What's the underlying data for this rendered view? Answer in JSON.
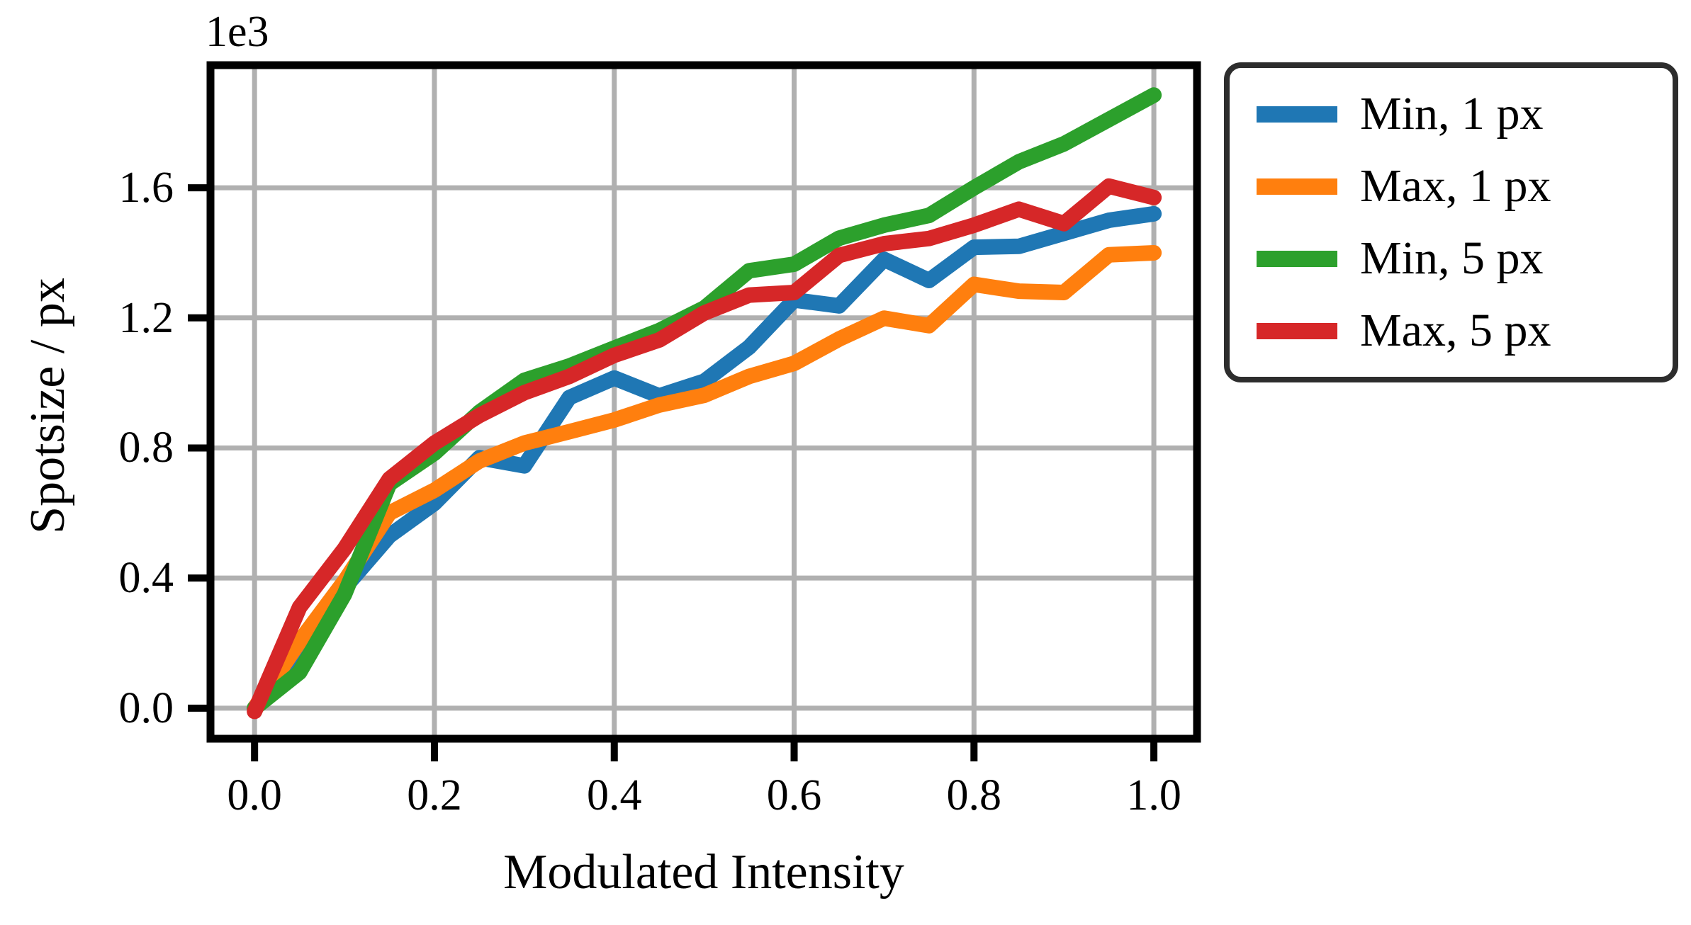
{
  "figure": {
    "y_offset_label": "1e3",
    "xlabel": "Modulated Intensity",
    "ylabel": "Spotsize / px"
  },
  "chart_data": {
    "type": "line",
    "title": "",
    "xlabel": "Modulated Intensity",
    "ylabel": "Spotsize / px",
    "y_offset_label": "1e3",
    "grid": true,
    "legend_position": "outside upper right",
    "background": "#ffffff",
    "grid_color": "#b0b0b0",
    "spine_color": "#000000",
    "legend_border_color": "#2d2d2d",
    "xlim": [
      -0.049,
      1.048
    ],
    "ylim": [
      -94,
      1977
    ],
    "xticks": {
      "values": [
        0.0,
        0.2,
        0.4,
        0.6,
        0.8,
        1.0
      ],
      "labels": [
        "0.0",
        "0.2",
        "0.4",
        "0.6",
        "0.8",
        "1.0"
      ]
    },
    "yticks": {
      "values": [
        0,
        400,
        800,
        1200,
        1600
      ],
      "labels": [
        "0.0",
        "0.4",
        "0.8",
        "1.2",
        "1.6"
      ]
    },
    "x": [
      0.0,
      0.05,
      0.1,
      0.15,
      0.2,
      0.25,
      0.3,
      0.35,
      0.4,
      0.45,
      0.5,
      0.55,
      0.6,
      0.65,
      0.7,
      0.75,
      0.8,
      0.85,
      0.9,
      0.95,
      1.0
    ],
    "series": [
      {
        "name": "Min, 1 px",
        "color": "#1f77b4",
        "values": [
          0,
          170,
          370,
          530,
          630,
          770,
          745,
          955,
          1015,
          960,
          1005,
          1110,
          1255,
          1237,
          1380,
          1315,
          1417,
          1420,
          1460,
          1500,
          1520
        ]
      },
      {
        "name": "Max, 1 px",
        "color": "#ff7f0e",
        "values": [
          0,
          205,
          390,
          600,
          670,
          760,
          815,
          850,
          886,
          932,
          962,
          1020,
          1060,
          1135,
          1199,
          1176,
          1303,
          1282,
          1278,
          1394,
          1400
        ]
      },
      {
        "name": "Min, 5 px",
        "color": "#2ca02c",
        "values": [
          0,
          110,
          350,
          690,
          784,
          910,
          1008,
          1052,
          1107,
          1161,
          1230,
          1345,
          1365,
          1445,
          1485,
          1515,
          1600,
          1680,
          1735,
          1810,
          1885
        ]
      },
      {
        "name": "Max, 5 px",
        "color": "#d62728",
        "values": [
          -10,
          310,
          490,
          705,
          815,
          900,
          970,
          1020,
          1085,
          1132,
          1215,
          1270,
          1278,
          1392,
          1428,
          1444,
          1485,
          1534,
          1490,
          1605,
          1570
        ]
      }
    ]
  }
}
